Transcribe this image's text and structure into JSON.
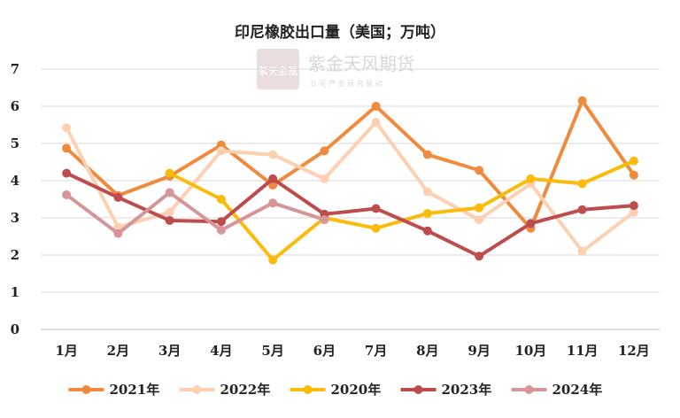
{
  "watermark": {
    "name": "紫金天风期货",
    "slogan": "立 足 产 业   研 究 驱 动",
    "seal_text": "紫天金風"
  },
  "chart_data": {
    "type": "line",
    "title": "印尼橡胶出口量（美国；万吨）",
    "xlabel": "",
    "ylabel": "",
    "categories": [
      "1月",
      "2月",
      "3月",
      "4月",
      "5月",
      "6月",
      "7月",
      "8月",
      "9月",
      "10月",
      "11月",
      "12月"
    ],
    "ylim": [
      0,
      7
    ],
    "yticks": [
      0,
      1,
      2,
      3,
      4,
      5,
      6,
      7
    ],
    "grid": "horizontal",
    "legend_position": "bottom",
    "series": [
      {
        "name": "2021年",
        "color": "#f08a3c",
        "values": [
          4.87,
          3.6,
          4.12,
          4.96,
          3.88,
          4.8,
          6.0,
          4.7,
          4.28,
          2.72,
          6.15,
          4.15
        ]
      },
      {
        "name": "2022年",
        "color": "#fcd0b0",
        "values": [
          5.42,
          2.75,
          3.15,
          4.8,
          4.7,
          4.05,
          5.57,
          3.7,
          2.95,
          3.92,
          2.1,
          3.15
        ]
      },
      {
        "name": "2020年",
        "color": "#fbbb0b",
        "values": [
          null,
          null,
          4.2,
          3.5,
          1.87,
          3.0,
          2.72,
          3.12,
          3.27,
          4.05,
          3.92,
          4.53
        ]
      },
      {
        "name": "2023年",
        "color": "#bd4d4d",
        "values": [
          4.2,
          3.55,
          2.93,
          2.9,
          4.05,
          3.1,
          3.25,
          2.65,
          1.97,
          2.85,
          3.22,
          3.33
        ]
      },
      {
        "name": "2024年",
        "color": "#d69598",
        "values": [
          3.62,
          2.58,
          3.68,
          2.67,
          3.4,
          2.95,
          null,
          null,
          null,
          null,
          null,
          null
        ]
      }
    ]
  }
}
